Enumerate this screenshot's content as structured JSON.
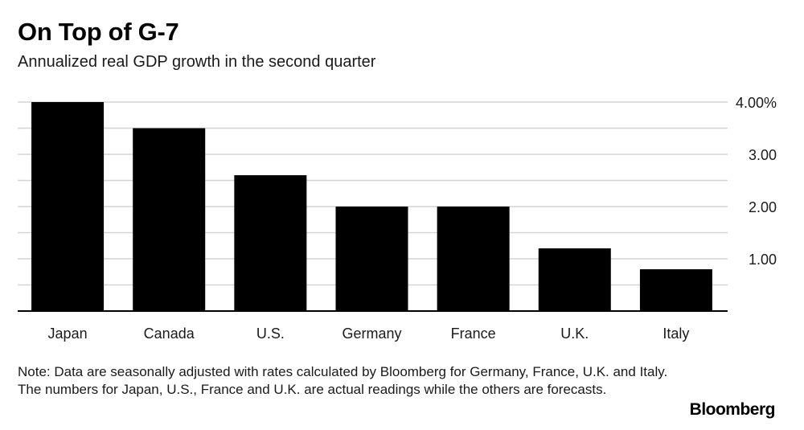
{
  "chart_data": {
    "type": "bar",
    "title": "On Top of G-7",
    "subtitle": "Annualized real GDP growth in the second quarter",
    "categories": [
      "Japan",
      "Canada",
      "U.S.",
      "Germany",
      "France",
      "U.K.",
      "Italy"
    ],
    "values": [
      4.0,
      3.5,
      2.6,
      2.0,
      2.0,
      1.2,
      0.8
    ],
    "ylim": [
      0,
      4.0
    ],
    "yticks": [
      {
        "value": 4.0,
        "label": "4.00%"
      },
      {
        "value": 3.0,
        "label": "3.00"
      },
      {
        "value": 2.0,
        "label": "2.00"
      },
      {
        "value": 1.0,
        "label": "1.00"
      }
    ],
    "gridlines": [
      0.5,
      1.0,
      1.5,
      2.0,
      2.5,
      3.0,
      3.5,
      4.0
    ],
    "xlabel": "",
    "ylabel": "",
    "colors": {
      "bar": "#000000",
      "grid": "#d4d4d4",
      "axis": "#000000"
    }
  },
  "note": "Note: Data are seasonally adjusted with rates calculated by Bloomberg for Germany, France, U.K. and Italy. The numbers for Japan, U.S., France and U.K. are actual readings while the others are forecasts.",
  "brand": "Bloomberg"
}
